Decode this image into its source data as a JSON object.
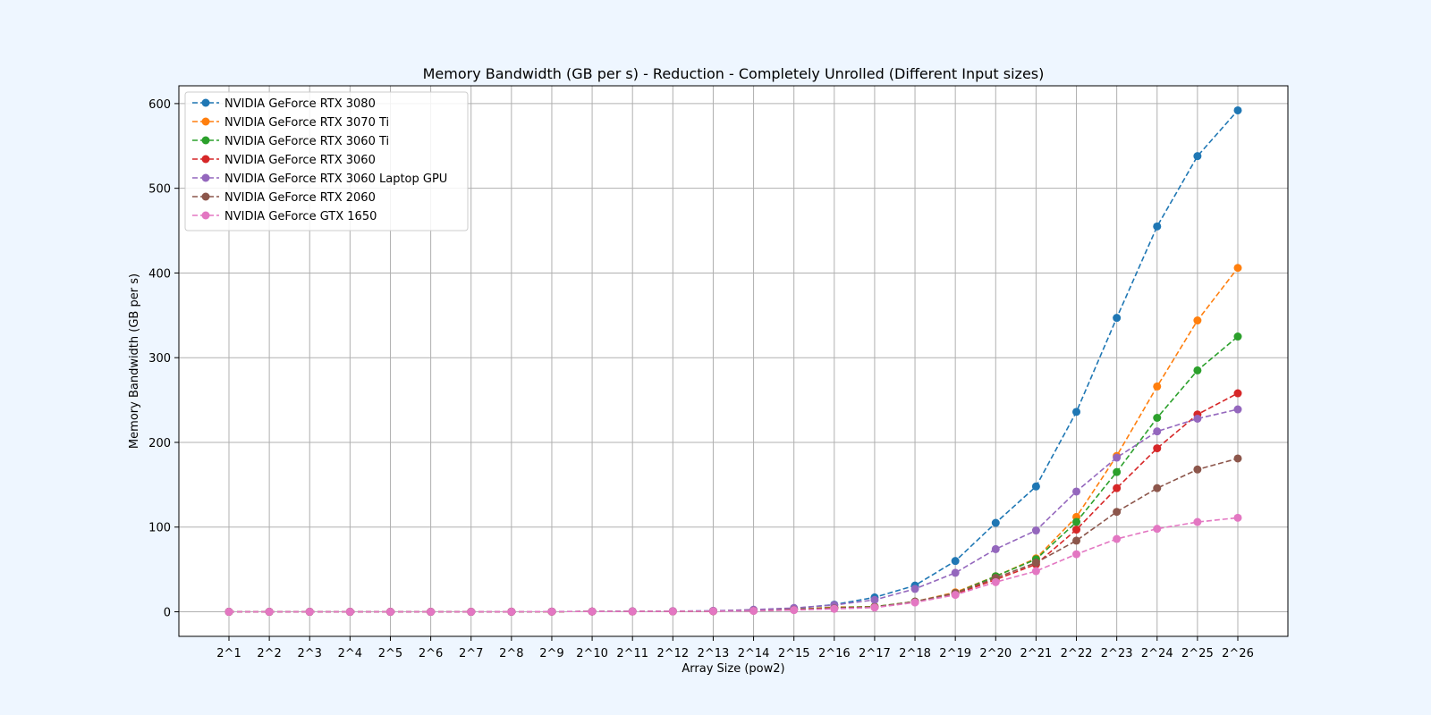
{
  "chart_data": {
    "type": "line",
    "title": "Memory Bandwidth (GB per s) - Reduction - Completely Unrolled (Different Input sizes)",
    "xlabel": "Array Size (pow2)",
    "ylabel": "Memory Bandwidth (GB per s)",
    "categories": [
      "2^1",
      "2^2",
      "2^3",
      "2^4",
      "2^5",
      "2^6",
      "2^7",
      "2^8",
      "2^9",
      "2^10",
      "2^11",
      "2^12",
      "2^13",
      "2^14",
      "2^15",
      "2^16",
      "2^17",
      "2^18",
      "2^19",
      "2^20",
      "2^21",
      "2^22",
      "2^23",
      "2^24",
      "2^25",
      "2^26"
    ],
    "ylim": [
      -29,
      621
    ],
    "yticks": [
      0,
      100,
      200,
      300,
      400,
      500,
      600
    ],
    "grid": true,
    "legend_position": "top-left",
    "line_style": "dashed",
    "marker": "circle",
    "series": [
      {
        "name": "NVIDIA GeForce RTX 3080",
        "color": "#1f77b4",
        "values": [
          0.0,
          0.0,
          0.0,
          0.0,
          0.0,
          0.0,
          0.0,
          0.1,
          0.2,
          0.3,
          0.5,
          0.6,
          1.0,
          2.0,
          4.0,
          8.5,
          17.0,
          31.0,
          60.0,
          105.0,
          148.0,
          236.0,
          347.0,
          455.0,
          538.0,
          592.0
        ]
      },
      {
        "name": "NVIDIA GeForce RTX 3070 Ti",
        "color": "#ff7f0e",
        "values": [
          0.0,
          0.0,
          0.0,
          0.0,
          0.0,
          0.0,
          0.0,
          0.1,
          0.2,
          0.3,
          0.4,
          0.5,
          0.8,
          1.5,
          2.8,
          5.5,
          6.0,
          12.0,
          23.0,
          42.0,
          63.0,
          112.0,
          184.0,
          266.0,
          344.0,
          406.0
        ]
      },
      {
        "name": "NVIDIA GeForce RTX 3060 Ti",
        "color": "#2ca02c",
        "values": [
          0.0,
          0.0,
          0.0,
          0.0,
          0.0,
          0.0,
          0.0,
          0.1,
          0.2,
          0.3,
          0.4,
          0.5,
          0.8,
          1.5,
          2.8,
          5.0,
          6.0,
          12.0,
          22.0,
          42.0,
          62.0,
          106.0,
          165.0,
          229.0,
          285.0,
          325.0
        ]
      },
      {
        "name": "NVIDIA GeForce RTX 3060",
        "color": "#d62728",
        "values": [
          0.0,
          0.0,
          0.0,
          0.0,
          0.0,
          0.0,
          0.0,
          0.1,
          0.2,
          0.3,
          0.4,
          0.5,
          0.7,
          1.3,
          2.5,
          4.5,
          5.5,
          11.5,
          21.0,
          38.0,
          56.0,
          97.0,
          146.0,
          193.0,
          233.0,
          258.0
        ]
      },
      {
        "name": "NVIDIA GeForce RTX 3060 Laptop GPU",
        "color": "#9467bd",
        "values": [
          0.0,
          0.0,
          0.0,
          0.0,
          0.0,
          0.0,
          0.0,
          0.1,
          0.3,
          0.4,
          0.6,
          0.8,
          1.2,
          2.5,
          4.5,
          8.0,
          14.0,
          27.0,
          46.0,
          74.0,
          96.0,
          142.0,
          182.0,
          213.0,
          228.0,
          239.0
        ]
      },
      {
        "name": "NVIDIA GeForce RTX 2060",
        "color": "#8c564b",
        "values": [
          0.0,
          0.0,
          0.0,
          0.0,
          0.0,
          0.0,
          0.0,
          0.1,
          0.2,
          0.3,
          0.4,
          0.5,
          0.7,
          1.2,
          2.2,
          4.0,
          5.5,
          12.0,
          22.0,
          40.0,
          58.0,
          84.0,
          118.0,
          146.0,
          168.0,
          181.0
        ]
      },
      {
        "name": "NVIDIA GeForce GTX 1650",
        "color": "#e377c2",
        "values": [
          0.0,
          0.0,
          0.0,
          0.0,
          0.0,
          0.0,
          0.0,
          0.1,
          0.2,
          0.3,
          0.4,
          0.5,
          0.7,
          1.1,
          2.0,
          3.5,
          5.0,
          11.0,
          20.0,
          35.0,
          48.0,
          68.0,
          86.0,
          98.0,
          106.0,
          111.0
        ]
      }
    ]
  }
}
